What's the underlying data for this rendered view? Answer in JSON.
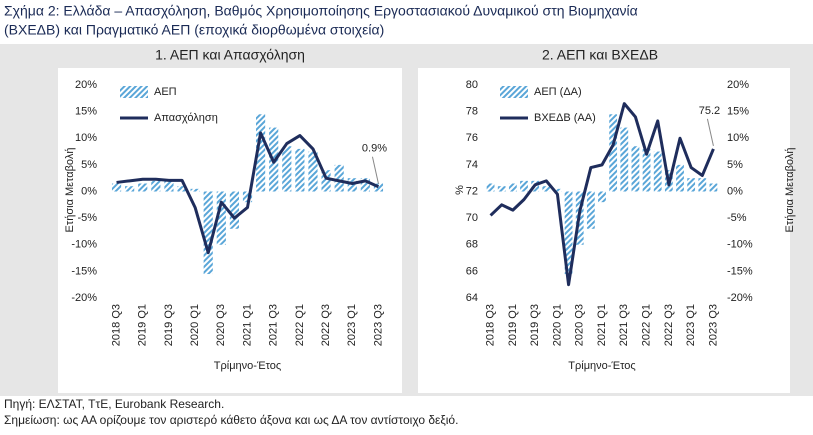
{
  "figure_title": [
    "Σχήμα 2: Ελλάδα – Απασχόληση, Βαθμός Χρησιμοποίησης Εργοστασιακού Δυναμικού στη Βιομηχανία",
    "(ΒΧΕΔΒ) και Πραγματικό ΑΕΠ (εποχικά διορθωμένα στοιχεία)"
  ],
  "source": "Πηγή: ΕΛΣΤΑΤ, ΤτΕ, Eurobank Research.",
  "note": "Σημείωση: ως ΑΑ ορίζουμε τον αριστερό κάθετο άξονα και ως ΔΑ τον αντίστοιχο δεξιό.",
  "chart_data": [
    {
      "type": "combo",
      "title": "1. ΑΕΠ και Απασχόληση",
      "xlabel": "Τρίμηνο-Έτος",
      "ylabel": "Ετήσια Μεταβολή",
      "categories": [
        "2018 Q3",
        null,
        "2019 Q1",
        null,
        "2019 Q3",
        null,
        "2020 Q1",
        null,
        "2020 Q3",
        null,
        "2021 Q1",
        null,
        "2021 Q3",
        null,
        "2022 Q1",
        null,
        "2022 Q3",
        null,
        "2023 Q1",
        null,
        "2023 Q3"
      ],
      "ylim": [
        -20,
        20
      ],
      "yticks": [
        {
          "value": -20,
          "label": "-20%"
        },
        {
          "value": -15,
          "label": "-15%"
        },
        {
          "value": -10,
          "label": "-10%"
        },
        {
          "value": -5,
          "label": "-5%"
        },
        {
          "value": 0,
          "label": "0%"
        },
        {
          "value": 5,
          "label": "5%"
        },
        {
          "value": 10,
          "label": "10%"
        },
        {
          "value": 15,
          "label": "15%"
        },
        {
          "value": 20,
          "label": "20%"
        }
      ],
      "series": [
        {
          "name": "ΑΕΠ",
          "type": "bar",
          "color": "#5aa6d8",
          "values": [
            1.5,
            1.0,
            1.5,
            2.0,
            2.0,
            1.0,
            0.5,
            -15.5,
            -10.0,
            -7.0,
            -2.0,
            14.5,
            12.0,
            8.5,
            8.0,
            7.5,
            4.0,
            5.0,
            2.5,
            2.5,
            1.5
          ]
        },
        {
          "name": "Απασχόληση",
          "type": "line",
          "color": "#1f2d5c",
          "values": [
            1.7,
            2.0,
            2.3,
            2.3,
            2.1,
            2.1,
            -3.0,
            -11.5,
            -2.0,
            -5.0,
            -3.0,
            11.0,
            5.5,
            9.0,
            10.5,
            8.0,
            2.5,
            2.0,
            1.5,
            2.0,
            0.9
          ],
          "value_labels": [
            null,
            null,
            null,
            null,
            null,
            null,
            null,
            null,
            null,
            null,
            null,
            null,
            null,
            null,
            null,
            null,
            null,
            null,
            null,
            null,
            "0.9%"
          ]
        }
      ]
    },
    {
      "type": "combo",
      "title": "2. ΑΕΠ και ΒΧΕΔΒ",
      "xlabel": "Τρίμηνο-Έτος",
      "ylabel": "%",
      "y2label": "Ετήσια Μεταβολή",
      "categories": [
        "2018 Q3",
        null,
        "2019 Q1",
        null,
        "2019 Q3",
        null,
        "2020 Q1",
        null,
        "2020 Q3",
        null,
        "2021 Q1",
        null,
        "2021 Q3",
        null,
        "2022 Q1",
        null,
        "2022 Q3",
        null,
        "2023 Q1",
        null,
        "2023 Q3"
      ],
      "ylim": [
        64,
        80
      ],
      "yticks": [
        64,
        66,
        68,
        70,
        72,
        74,
        76,
        78,
        80
      ],
      "y2lim": [
        -20,
        20
      ],
      "y2ticks": [
        {
          "value": -20,
          "label": "-20%"
        },
        {
          "value": -15,
          "label": "-15%"
        },
        {
          "value": -10,
          "label": "-10%"
        },
        {
          "value": -5,
          "label": "-5%"
        },
        {
          "value": 0,
          "label": "0%"
        },
        {
          "value": 5,
          "label": "5%"
        },
        {
          "value": 10,
          "label": "10%"
        },
        {
          "value": 15,
          "label": "15%"
        },
        {
          "value": 20,
          "label": "20%"
        }
      ],
      "series": [
        {
          "name": "ΑΕΠ (ΔΑ)",
          "type": "bar",
          "axis": "y2",
          "color": "#5aa6d8",
          "values": [
            1.5,
            1.0,
            1.5,
            2.0,
            2.0,
            1.0,
            0.5,
            -15.5,
            -10.0,
            -7.0,
            -2.0,
            14.5,
            12.0,
            8.5,
            8.0,
            7.5,
            4.0,
            5.0,
            2.5,
            2.5,
            1.5
          ]
        },
        {
          "name": "ΒΧΕΔΒ (ΑΑ)",
          "type": "line",
          "color": "#1f2d5c",
          "values": [
            70.2,
            71.0,
            70.6,
            71.4,
            72.5,
            72.8,
            71.8,
            65.0,
            70.5,
            73.8,
            74.0,
            75.5,
            78.6,
            77.6,
            74.8,
            77.3,
            72.5,
            76.0,
            73.8,
            73.2,
            75.2
          ],
          "value_labels": [
            null,
            null,
            null,
            null,
            null,
            null,
            null,
            null,
            null,
            null,
            null,
            null,
            null,
            null,
            null,
            null,
            null,
            null,
            null,
            null,
            "75.2"
          ]
        }
      ]
    }
  ]
}
